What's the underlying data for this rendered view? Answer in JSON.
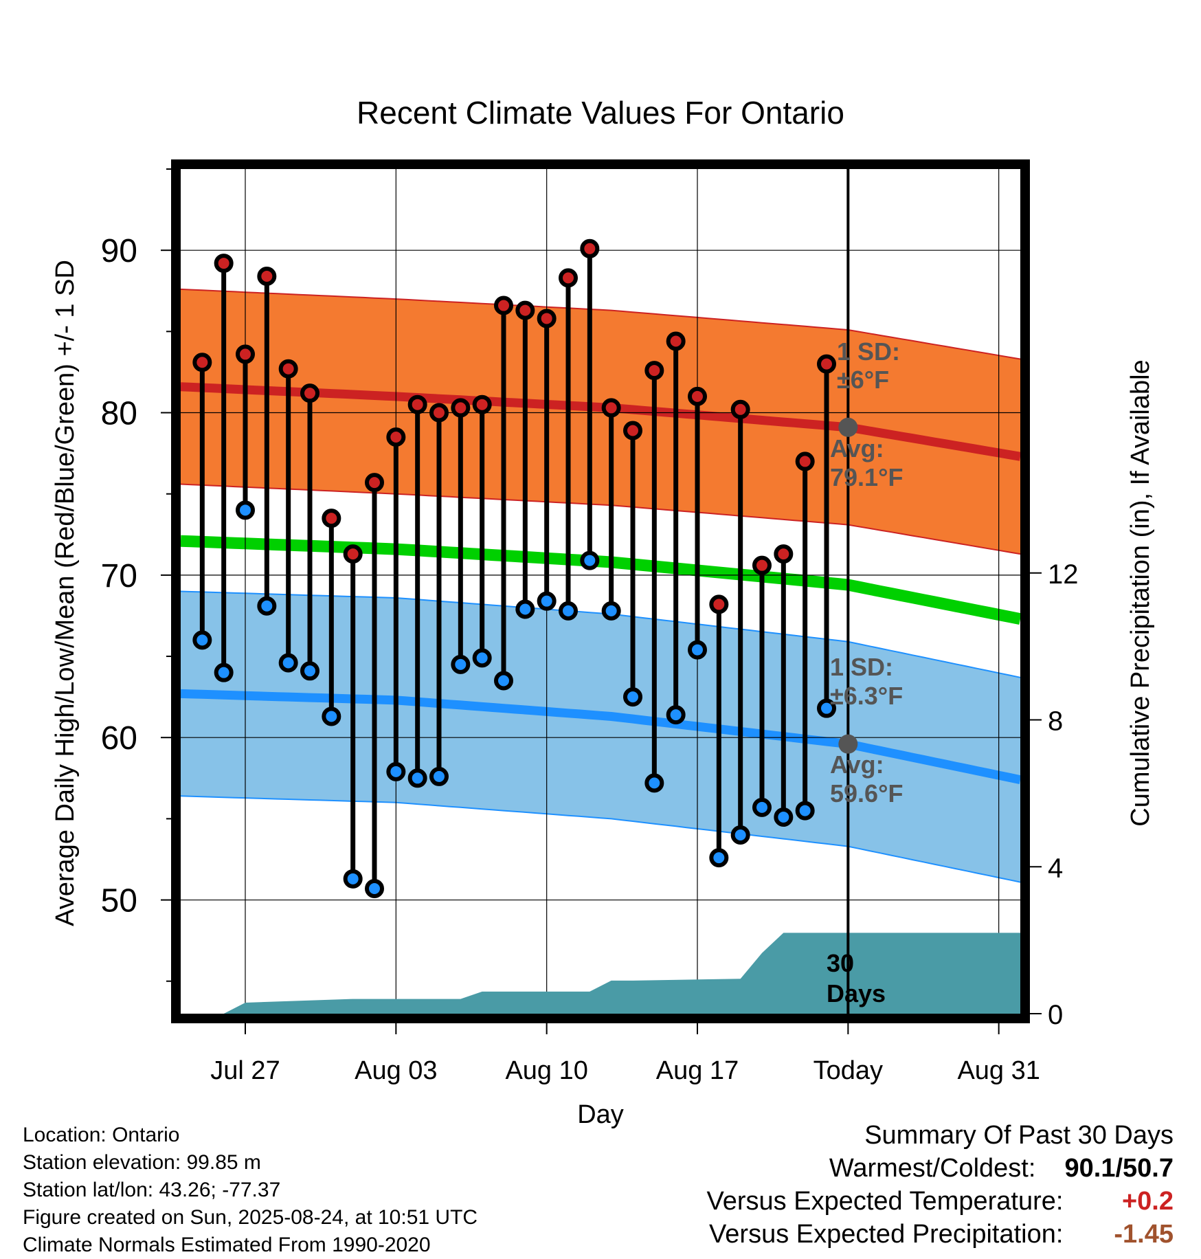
{
  "chart_data": {
    "type": "line",
    "title": "Recent Climate Values For Ontario",
    "xlabel": "Day",
    "ylabel": "Average Daily High/Low/Mean (Red/Blue/Green) +/- 1 SD",
    "y2label": "Cumulative Precipitation (in), If Available",
    "x_tick_labels": [
      "Jul 27",
      "Aug 03",
      "Aug 10",
      "Aug 17",
      "Today",
      "Aug 31"
    ],
    "y_ticks": [
      50,
      60,
      70,
      80,
      90
    ],
    "y2_ticks": [
      0,
      4,
      8,
      12
    ],
    "ylim": [
      43,
      95
    ],
    "y2lim": [
      0,
      23
    ],
    "xlim": [
      "2025-07-24",
      "2025-09-01"
    ],
    "today": "2025-08-24",
    "grid": true,
    "days": [
      "2025-07-25",
      "2025-07-26",
      "2025-07-27",
      "2025-07-28",
      "2025-07-29",
      "2025-07-30",
      "2025-07-31",
      "2025-08-01",
      "2025-08-02",
      "2025-08-03",
      "2025-08-04",
      "2025-08-05",
      "2025-08-06",
      "2025-08-07",
      "2025-08-08",
      "2025-08-09",
      "2025-08-10",
      "2025-08-11",
      "2025-08-12",
      "2025-08-13",
      "2025-08-14",
      "2025-08-15",
      "2025-08-16",
      "2025-08-17",
      "2025-08-18",
      "2025-08-19",
      "2025-08-20",
      "2025-08-21",
      "2025-08-22",
      "2025-08-23"
    ],
    "series": [
      {
        "name": "High",
        "color": "#cc2222",
        "values": [
          83.1,
          89.2,
          83.6,
          88.4,
          82.7,
          81.2,
          73.5,
          71.3,
          75.7,
          78.5,
          80.5,
          80.0,
          80.3,
          80.5,
          86.6,
          86.3,
          85.8,
          88.3,
          90.1,
          80.3,
          78.9,
          82.6,
          84.4,
          81.0,
          68.2,
          80.2,
          70.6,
          71.3,
          77.0,
          83.0
        ]
      },
      {
        "name": "Low",
        "color": "#1e90ff",
        "values": [
          66.0,
          64.0,
          74.0,
          68.1,
          64.6,
          64.1,
          61.3,
          51.3,
          50.7,
          57.9,
          57.5,
          57.6,
          64.5,
          64.9,
          63.5,
          67.9,
          68.4,
          67.8,
          70.9,
          67.8,
          62.5,
          57.2,
          61.4,
          65.4,
          52.6,
          54.0,
          55.7,
          55.1,
          55.5,
          61.8
        ]
      }
    ],
    "normals": {
      "dates": [
        "2025-07-24",
        "2025-08-03",
        "2025-08-13",
        "2025-08-24",
        "2025-09-01"
      ],
      "high_avg": [
        81.6,
        81.0,
        80.3,
        79.1,
        77.3
      ],
      "low_avg": [
        62.7,
        62.3,
        61.3,
        59.6,
        57.4
      ],
      "mean_avg": [
        72.1,
        71.6,
        70.8,
        69.4,
        67.3
      ],
      "high_sd": 6,
      "low_sd": 6.3
    },
    "precip_cumulative": {
      "dates": [
        "2025-07-24",
        "2025-07-26",
        "2025-07-27",
        "2025-08-01",
        "2025-08-06",
        "2025-08-07",
        "2025-08-12",
        "2025-08-13",
        "2025-08-14",
        "2025-08-19",
        "2025-08-20",
        "2025-08-21",
        "2025-09-01"
      ],
      "values": [
        0,
        0,
        0.3,
        0.4,
        0.4,
        0.6,
        0.6,
        0.9,
        0.9,
        0.95,
        1.65,
        2.2,
        2.2
      ]
    },
    "annotations": {
      "high_sd_title": "1 SD:",
      "high_sd_value": "±6°F",
      "high_avg_title": "Avg:",
      "high_avg_value": "79.1°F",
      "low_sd_title": "1 SD:",
      "low_sd_value": "±6.3°F",
      "low_avg_title": "Avg:",
      "low_avg_value": "59.6°F",
      "precip_line1": "30",
      "precip_line2": "Days"
    }
  },
  "info": {
    "location": "Location: Ontario",
    "elevation": "Station elevation: 99.85 m",
    "latlon": "Station lat/lon: 43.26; -77.37",
    "created": "Figure created on Sun, 2025-08-24, at 10:51 UTC",
    "normals": "Climate Normals Estimated From 1990-2020"
  },
  "summary": {
    "title": "Summary Of Past 30 Days",
    "warmest_label": "Warmest/Coldest:",
    "warmest_value": "90.1/50.7",
    "temp_label": "Versus Expected Temperature:",
    "temp_value": "+0.2",
    "temp_color": "#cc2222",
    "precip_label": "Versus Expected Precipitation:",
    "precip_value": "-1.45",
    "precip_color": "#a0522d"
  },
  "colors": {
    "high_band": "#f47a30",
    "high_line": "#cc2222",
    "low_band": "#87c2e8",
    "low_line": "#1e90ff",
    "mean_line": "#00d000",
    "precip_fill": "#4a9ba6",
    "avg_dot": "#555555",
    "annotation_text": "#555555"
  }
}
